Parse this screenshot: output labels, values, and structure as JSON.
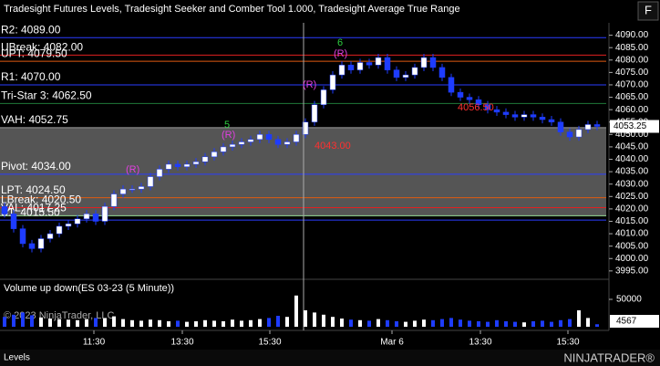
{
  "chart_data": {
    "type": "candlestick",
    "title": "Tradesight Futures Levels, Tradesight Seeker and Comber Tool 1.000, Tradesight Average True Range",
    "open": [
      4021,
      4018,
      4012,
      4006,
      4004,
      4008,
      4010,
      4013,
      4014,
      4016,
      4018,
      4015,
      4021,
      4026,
      4028,
      4028,
      4029,
      4033,
      4036,
      4038,
      4037,
      4038,
      4039,
      4041,
      4043,
      4045,
      4046,
      4047,
      4048,
      4050,
      4048,
      4046,
      4047,
      4050,
      4055,
      4062,
      4068,
      4074,
      4078,
      4076,
      4079,
      4078,
      4081,
      4076,
      4073,
      4074,
      4077,
      4081,
      4077,
      4073,
      4067,
      4065,
      4064,
      4062,
      4060,
      4059,
      4058,
      4057,
      4058,
      4057,
      4056,
      4055,
      4051,
      4049,
      4052,
      4054
    ],
    "high": [
      4022.5,
      4019.5,
      4013.5,
      4007.5,
      4009.5,
      4011.5,
      4014.5,
      4015.5,
      4017.5,
      4019.5,
      4019.5,
      4022.5,
      4027.5,
      4029.5,
      4029.5,
      4030.5,
      4034.5,
      4037.5,
      4039.5,
      4039.5,
      4039.5,
      4040.5,
      4042.5,
      4044.5,
      4046.5,
      4047.5,
      4048.5,
      4049.5,
      4051.5,
      4051.5,
      4049.5,
      4048.5,
      4051.5,
      4056.5,
      4063.5,
      4069.5,
      4075.5,
      4079.5,
      4079.5,
      4080.5,
      4080.5,
      4082.5,
      4082.5,
      4077.5,
      4075.5,
      4078.5,
      4082.5,
      4082.5,
      4078.5,
      4074.5,
      4068.5,
      4066.5,
      4065.5,
      4063.5,
      4061.5,
      4060.5,
      4059.5,
      4059.5,
      4059.5,
      4058.5,
      4057.5,
      4056.5,
      4052.5,
      4053.5,
      4055.5,
      4055.5
    ],
    "low": [
      4016.5,
      4010.5,
      4004.5,
      4002.5,
      4002.5,
      4006.5,
      4008.5,
      4011.5,
      4012.5,
      4014.5,
      4013.5,
      4013.5,
      4019.5,
      4024.5,
      4026.5,
      4026.5,
      4027.5,
      4031.5,
      4034.5,
      4035.5,
      4035.5,
      4036.5,
      4037.5,
      4039.5,
      4041.5,
      4043.5,
      4044.5,
      4045.5,
      4046.5,
      4046.5,
      4044.5,
      4044.5,
      4045.5,
      4048.5,
      4053.5,
      4060.5,
      4066.5,
      4072.5,
      4074.5,
      4074.5,
      4076.5,
      4076.5,
      4074.5,
      4071.5,
      4071.5,
      4072.5,
      4075.5,
      4075.5,
      4071.5,
      4065.5,
      4063.5,
      4062.5,
      4060.5,
      4058.5,
      4057.5,
      4056.5,
      4055.5,
      4055.5,
      4055.5,
      4054.5,
      4053.5,
      4049.5,
      4047.5,
      4047.5,
      4050.5,
      4051.75
    ],
    "close": [
      4018,
      4012,
      4006,
      4004,
      4008,
      4010,
      4013,
      4014,
      4016,
      4018,
      4015,
      4021,
      4026,
      4028,
      4028,
      4029,
      4033,
      4036,
      4038,
      4037,
      4038,
      4039,
      4041,
      4043,
      4045,
      4046,
      4047,
      4048,
      4050,
      4048,
      4046,
      4047,
      4050,
      4055,
      4062,
      4068,
      4074,
      4078,
      4076,
      4079,
      4078,
      4081,
      4076,
      4073,
      4074,
      4077,
      4081,
      4077,
      4073,
      4067,
      4065,
      4064,
      4062,
      4060,
      4059,
      4058,
      4057,
      4058,
      4057,
      4056,
      4055,
      4051,
      4049,
      4052,
      4054,
      4053.25
    ],
    "up_color": "#ffffff",
    "down_color": "#1e3cff",
    "xlim": [
      0,
      66.5
    ],
    "xticks": [
      {
        "value": 10.3,
        "label": "11:30"
      },
      {
        "value": 20.0,
        "label": "13:30"
      },
      {
        "value": 29.6,
        "label": "15:30"
      },
      {
        "value": 43.0,
        "label": "Mar 6"
      },
      {
        "value": 52.7,
        "label": "13:30"
      },
      {
        "value": 62.3,
        "label": "15:30"
      }
    ],
    "ylim": [
      3992,
      4095
    ],
    "yticks": [
      {
        "value": 4090,
        "label": "4090.00"
      },
      {
        "value": 4085,
        "label": "4085.00"
      },
      {
        "value": 4080,
        "label": "4080.00"
      },
      {
        "value": 4075,
        "label": "4075.00"
      },
      {
        "value": 4070,
        "label": "4070.00"
      },
      {
        "value": 4065,
        "label": "4065.00"
      },
      {
        "value": 4060,
        "label": "4060.00"
      },
      {
        "value": 4055,
        "label": "4055.00"
      },
      {
        "value": 4050,
        "label": "4050.00"
      },
      {
        "value": 4045,
        "label": "4045.00"
      },
      {
        "value": 4040,
        "label": "4040.00"
      },
      {
        "value": 4035,
        "label": "4035.00"
      },
      {
        "value": 4030,
        "label": "4030.00"
      },
      {
        "value": 4025,
        "label": "4025.00"
      },
      {
        "value": 4020,
        "label": "4020.00"
      },
      {
        "value": 4015,
        "label": "4015.00"
      },
      {
        "value": 4010,
        "label": "4010.00"
      },
      {
        "value": 4005,
        "label": "4005.00"
      },
      {
        "value": 4000,
        "label": "4000.00"
      },
      {
        "value": 3995,
        "label": "3995.00"
      }
    ],
    "levels": [
      {
        "value": 4089,
        "label": "R2: 4089.00",
        "color": "#2a3cff"
      },
      {
        "value": 4082,
        "label": "UBreak: 4082.00",
        "color": "#e02020"
      },
      {
        "value": 4079.5,
        "label": "UPT: 4079.50",
        "color": "#e05a10"
      },
      {
        "value": 4070,
        "label": "R1: 4070.00",
        "color": "#2a3cff"
      },
      {
        "value": 4062.5,
        "label": "Tri-Star 3: 4062.50",
        "color": "#1f7a3a"
      },
      {
        "value": 4052.75,
        "label": "VAH: 4052.75",
        "color": "#9a9a9a"
      },
      {
        "value": 4034,
        "label": "Pivot: 4034.00",
        "color": "#2a3cff"
      },
      {
        "value": 4024.5,
        "label": "LPT: 4024.50",
        "color": "#e05a10"
      },
      {
        "value": 4020.5,
        "label": "LBreak: 4020.50",
        "color": "#e02020"
      },
      {
        "value": 4017.25,
        "label": "VAL: 4017.25",
        "color": "#9ae09a"
      },
      {
        "value": 4015.5,
        "label": "S1: 4015.50",
        "color": "#2a3cff"
      }
    ],
    "value_area_color": "#555555",
    "annotations": [
      "4043.00",
      "4056.50",
      "6",
      "5",
      "(R)",
      "(R)",
      "(R)",
      "(R)"
    ],
    "volume": {
      "title": "Volume up down(ES 03-23 (5 Minute))",
      "values": [
        18000,
        22000,
        26000,
        21000,
        17000,
        15000,
        14000,
        13000,
        12000,
        14000,
        16000,
        15000,
        19000,
        14000,
        12000,
        11000,
        13000,
        12000,
        10000,
        11000,
        9000,
        10000,
        12000,
        11000,
        10000,
        13000,
        11000,
        12000,
        14000,
        16000,
        20000,
        18000,
        57000,
        30000,
        26000,
        22000,
        18000,
        15000,
        13000,
        12000,
        11000,
        14000,
        12000,
        10000,
        9000,
        11000,
        13000,
        12000,
        14000,
        16000,
        13000,
        11000,
        10000,
        9000,
        12000,
        10000,
        9000,
        8000,
        10000,
        11000,
        9000,
        12000,
        14000,
        30000,
        16000,
        4567
      ],
      "ylim": [
        0,
        80000
      ],
      "yticks": [
        50000
      ]
    },
    "watermark": "© 2023 NinjaTrader, LLC",
    "tab": "Levels",
    "brand": "NINJATRADER®",
    "button": "F"
  }
}
